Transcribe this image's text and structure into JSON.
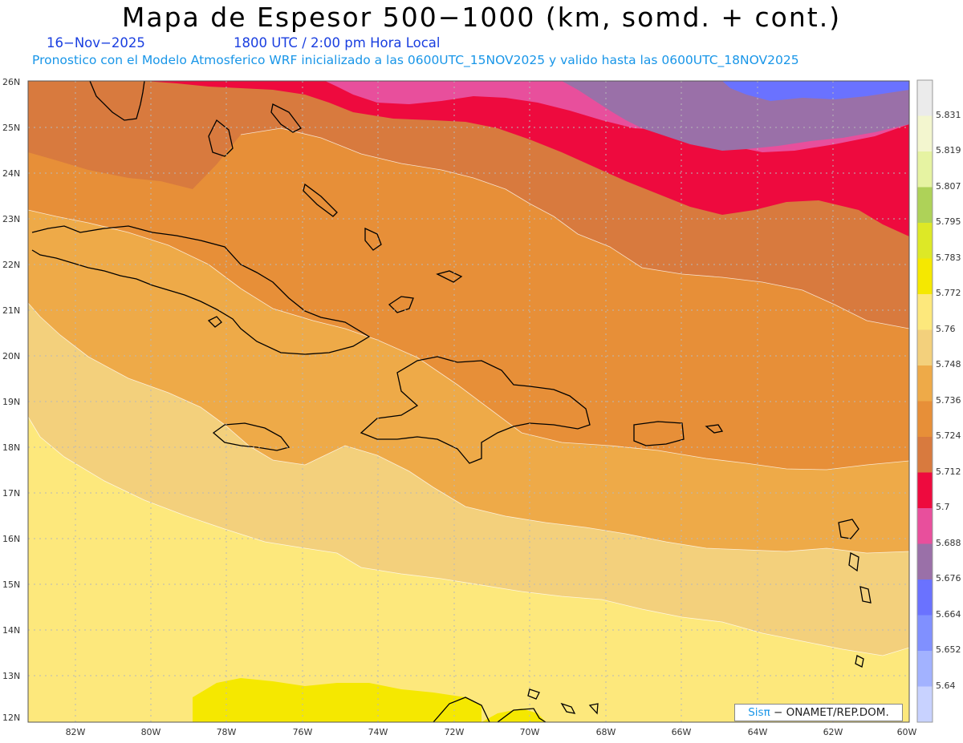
{
  "header": {
    "title": "Mapa de Espesor 500−1000 (km, somd. + cont.)",
    "date": "16−Nov−2025",
    "time": "1800 UTC / 2:00 pm Hora Local",
    "info": "Pronostico con el Modelo Atmosferico WRF inicializado a las 0600UTC_15NOV2025 y valido hasta las  0600UTC_18NOV2025"
  },
  "map": {
    "lat_ticks": [
      "26N",
      "25N",
      "24N",
      "23N",
      "22N",
      "21N",
      "20N",
      "19N",
      "18N",
      "17N",
      "16N",
      "15N",
      "14N",
      "13N",
      "12N"
    ],
    "lon_ticks": [
      "82W",
      "80W",
      "78W",
      "76W",
      "74W",
      "72W",
      "70W",
      "68W",
      "66W",
      "64W",
      "62W",
      "60W"
    ],
    "lat_range": [
      12,
      26
    ],
    "lon_range": [
      -83.2,
      -60
    ],
    "grid": true
  },
  "colorbar": {
    "labels": [
      "5.831",
      "5.819",
      "5.807",
      "5.795",
      "5.783",
      "5.772",
      "5.76",
      "5.748",
      "5.736",
      "5.724",
      "5.712",
      "5.7",
      "5.688",
      "5.676",
      "5.664",
      "5.652",
      "5.64"
    ],
    "colors": [
      "#ebebeb",
      "#f3f6cf",
      "#e6f3a2",
      "#aed258",
      "#dde826",
      "#f5e800",
      "#fde87c",
      "#f3d07c",
      "#eeaa48",
      "#e78f38",
      "#d87a3e",
      "#ee0a3e",
      "#e84f9c",
      "#9a70a8",
      "#6a72ff",
      "#8090ff",
      "#a2b2ff",
      "#c8d2ff"
    ]
  },
  "credit": {
    "brand": "Sisπ",
    "text": " − ONAMET/REP.DOM."
  },
  "colors": {
    "title": "#000000",
    "subtitle": "#1a3fe0",
    "info": "#1996e8"
  }
}
